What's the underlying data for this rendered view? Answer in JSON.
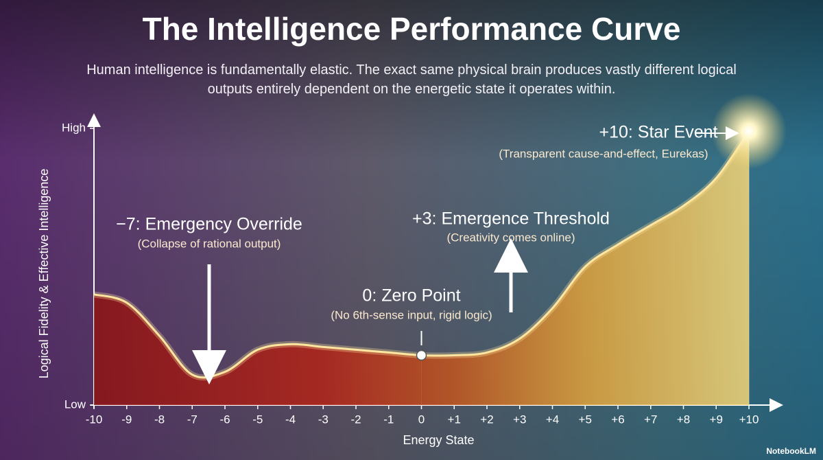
{
  "chart_data": {
    "type": "line",
    "title": "The Intelligence Performance Curve",
    "subtitle": "Human intelligence is fundamentally elastic. The exact same physical brain produces vastly different logical outputs entirely dependent on the energetic state it operates within.",
    "xlabel": "Energy State",
    "ylabel": "Logical Fidelity & Effective Intelligence",
    "x": [
      -10,
      -9,
      -8,
      -7,
      -6,
      -5,
      -4,
      -3,
      -2,
      -1,
      0,
      1,
      2,
      3,
      4,
      5,
      6,
      7,
      8,
      9,
      10
    ],
    "values": [
      4.0,
      3.7,
      2.5,
      1.1,
      1.2,
      2.0,
      2.2,
      2.1,
      2.0,
      1.9,
      1.8,
      1.8,
      1.9,
      2.4,
      3.5,
      5.0,
      5.8,
      6.5,
      7.2,
      8.2,
      9.9
    ],
    "color": "#ffe6a0",
    "xlim": [
      -10,
      10
    ],
    "xticks": [
      -10,
      -9,
      -8,
      -7,
      -6,
      -5,
      -4,
      -3,
      -2,
      -1,
      0,
      {
        "value": 1,
        "label": "+1"
      },
      {
        "value": 2,
        "label": "+2"
      },
      {
        "value": 3,
        "label": "+3"
      },
      {
        "value": 4,
        "label": "+4"
      },
      {
        "value": 5,
        "label": "+5"
      },
      {
        "value": 6,
        "label": "+6"
      },
      {
        "value": 7,
        "label": "+7"
      },
      {
        "value": 8,
        "label": "+8"
      },
      {
        "value": 9,
        "label": "+9"
      },
      {
        "value": 10,
        "label": "+10"
      }
    ],
    "ylim": [
      0,
      10
    ],
    "yticks": [
      {
        "value": 0,
        "label": "Low"
      },
      {
        "value": 10,
        "label": "High"
      }
    ],
    "annotations": [
      {
        "label": "−7: Emergency Override",
        "note": "(Collapse of rational output)"
      },
      {
        "label": "0: Zero Point",
        "note": "(No 6th-sense input, rigid logic)"
      },
      {
        "label": "+3: Emergence Threshold",
        "note": "(Creativity comes online)"
      },
      {
        "label": "+10: Star Event",
        "note": "(Transparent cause-and-effect, Eurekas)"
      }
    ],
    "watermark": "NotebookLM"
  }
}
